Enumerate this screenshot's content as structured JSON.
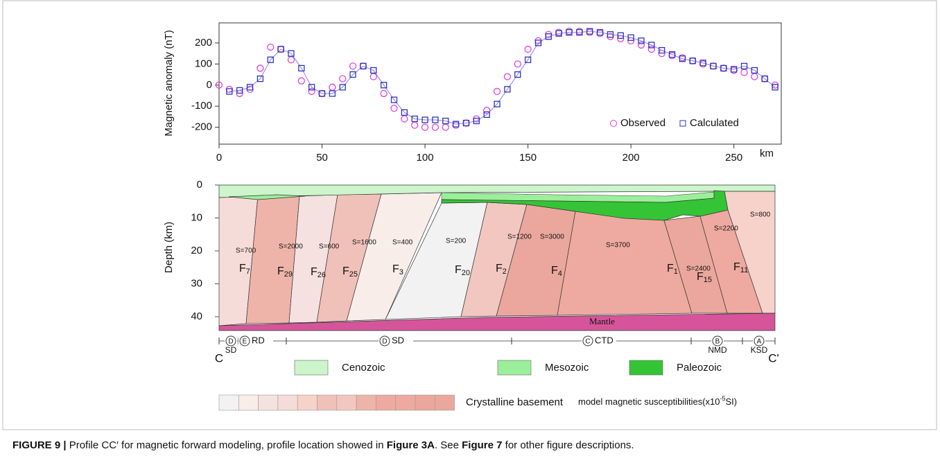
{
  "chart_data": {
    "type": "scatter",
    "x": [
      0,
      5,
      10,
      15,
      20,
      25,
      30,
      35,
      40,
      45,
      50,
      55,
      60,
      65,
      70,
      75,
      80,
      85,
      90,
      95,
      100,
      105,
      110,
      115,
      120,
      125,
      130,
      135,
      140,
      145,
      150,
      155,
      160,
      165,
      170,
      175,
      180,
      185,
      190,
      195,
      200,
      205,
      210,
      215,
      220,
      225,
      230,
      235,
      240,
      245,
      250,
      255,
      260,
      265,
      270
    ],
    "series": [
      {
        "name": "Observed",
        "color": "#e23fe2",
        "marker": "circle",
        "values": [
          0,
          -20,
          -40,
          -20,
          80,
          180,
          170,
          120,
          20,
          -30,
          -40,
          -10,
          30,
          90,
          90,
          40,
          -40,
          -110,
          -160,
          -190,
          -200,
          -200,
          -200,
          -190,
          -180,
          -160,
          -120,
          -30,
          40,
          100,
          170,
          210,
          240,
          250,
          255,
          255,
          250,
          245,
          230,
          220,
          210,
          190,
          170,
          150,
          140,
          130,
          115,
          100,
          90,
          80,
          70,
          60,
          40,
          30,
          0
        ]
      },
      {
        "name": "Calculated",
        "color": "#2f35b5",
        "marker": "square",
        "line_color": "#7d7dff",
        "values": [
          null,
          -30,
          -25,
          -10,
          30,
          120,
          170,
          150,
          80,
          -10,
          -40,
          -40,
          -10,
          50,
          90,
          70,
          0,
          -70,
          -130,
          -160,
          -165,
          -165,
          -170,
          -185,
          -180,
          -170,
          -140,
          -90,
          -20,
          50,
          120,
          200,
          230,
          245,
          250,
          250,
          255,
          250,
          240,
          235,
          225,
          210,
          190,
          165,
          145,
          125,
          115,
          105,
          90,
          80,
          75,
          90,
          70,
          30,
          -10
        ]
      }
    ],
    "xlabel": "km",
    "ylabel": "Magnetic anomaly (nT)",
    "xlim": [
      0,
      273
    ],
    "ylim": [
      -280,
      295
    ],
    "xticks": [
      0,
      50,
      100,
      150,
      200,
      250
    ],
    "yticks": [
      -200,
      -100,
      0,
      100,
      200
    ],
    "legend": "lower right"
  },
  "section": {
    "ylabel": "Depth (km)",
    "ylim": [
      0,
      44
    ],
    "yticks": [
      0,
      10,
      20,
      30,
      40
    ],
    "blocks": [
      "S=700",
      "S=2000",
      "S=600",
      "S=1600",
      "S=400",
      "S=200",
      "S=1200",
      "S=3000",
      "S=3700",
      "S=2400",
      "S=2200",
      "S=800"
    ],
    "faults": [
      {
        "main": "F",
        "sub": "7"
      },
      {
        "main": "F",
        "sub": "29"
      },
      {
        "main": "F",
        "sub": "26"
      },
      {
        "main": "F",
        "sub": "25"
      },
      {
        "main": "F",
        "sub": "3"
      },
      {
        "main": "F",
        "sub": "20"
      },
      {
        "main": "F",
        "sub": "2"
      },
      {
        "main": "F",
        "sub": "4"
      },
      {
        "main": "F",
        "sub": "1"
      },
      {
        "main": "F",
        "sub": "15"
      },
      {
        "main": "F",
        "sub": "11"
      }
    ],
    "mantle": "Mantle",
    "start": "C",
    "end": "C'",
    "domains": [
      {
        "letter": "D",
        "name": "SD"
      },
      {
        "letter": "E",
        "name": "RD"
      },
      {
        "letter": "D",
        "name": "SD"
      },
      {
        "letter": "C",
        "name": "CTD"
      },
      {
        "letter": "B",
        "name": "NMD"
      },
      {
        "letter": "A",
        "name": "KSD"
      }
    ]
  },
  "legend": {
    "units": [
      {
        "name": "Cenozoic",
        "color": "#ccf5cc"
      },
      {
        "name": "Mesozoic",
        "color": "#9bef9b"
      },
      {
        "name": "Paleozoic",
        "color": "#35c435"
      }
    ],
    "basement": "Crystalline basement",
    "note": {
      "text": "model magnetic susceptibilities(x10",
      "sup": "-5",
      "tail": "SI)"
    }
  },
  "caption": [
    {
      "text": "FIGURE 9 |",
      "bold": true
    },
    {
      "text": " Profile CC′ for magnetic forward modeling, profile location showed in ",
      "bold": false
    },
    {
      "text": "Figure 3A",
      "bold": true
    },
    {
      "text": ". See ",
      "bold": false
    },
    {
      "text": "Figure 7",
      "bold": true
    },
    {
      "text": " for other figure descriptions.",
      "bold": false
    }
  ]
}
